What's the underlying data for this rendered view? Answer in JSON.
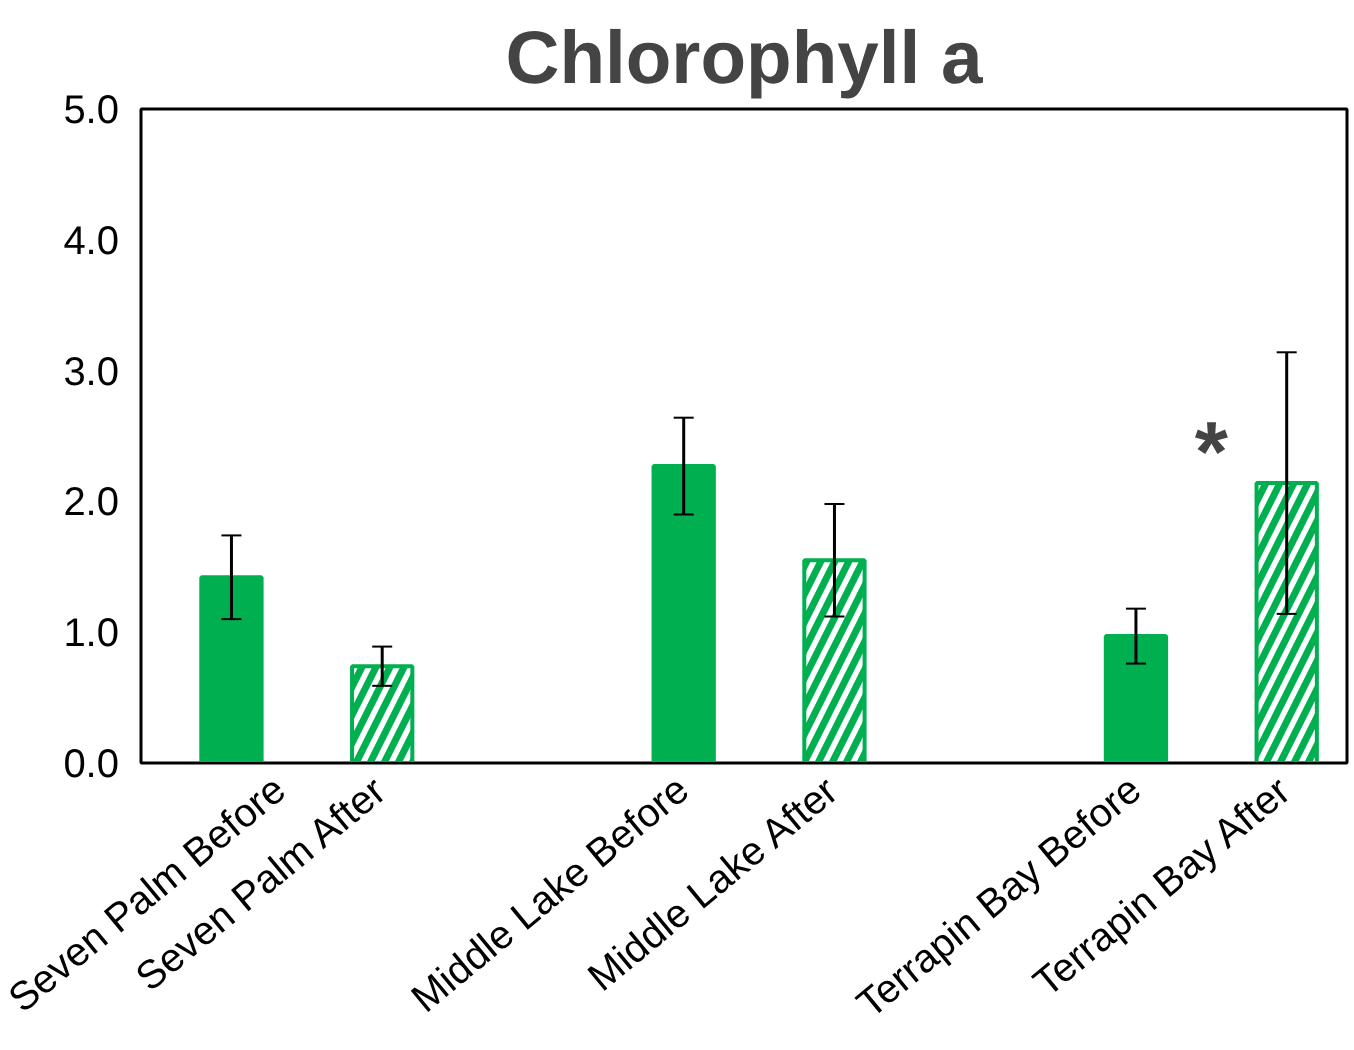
{
  "chart_data": {
    "type": "bar",
    "title": "Chlorophyll a",
    "categories": [
      "Seven Palm Before",
      "Seven Palm After",
      null,
      "Middle Lake Before",
      "Middle Lake After",
      null,
      "Terrapin Bay Before",
      "Terrapin Bay After"
    ],
    "series": [
      {
        "color": "#00b050",
        "values": [
          1.42,
          null,
          null,
          2.27,
          null,
          null,
          0.97,
          null
        ],
        "errors": [
          0.32,
          null,
          null,
          0.37,
          null,
          null,
          0.21,
          null
        ]
      },
      {
        "color": "#00b050",
        "values": [
          null,
          0.74,
          null,
          null,
          1.55,
          null,
          null,
          2.14
        ],
        "errors": [
          null,
          0.15,
          null,
          null,
          0.43,
          null,
          null,
          1.0
        ]
      }
    ],
    "ylim": [
      0,
      5
    ],
    "yticks": [
      {
        "value": 0,
        "label": "0.0"
      },
      {
        "value": 1,
        "label": "1.0"
      },
      {
        "value": 2,
        "label": "2.0"
      },
      {
        "value": 3,
        "label": "3.0"
      },
      {
        "value": 4,
        "label": "4.0"
      },
      {
        "value": 5,
        "label": "5.0"
      }
    ],
    "annotations": [
      "*"
    ],
    "grid": false
  }
}
